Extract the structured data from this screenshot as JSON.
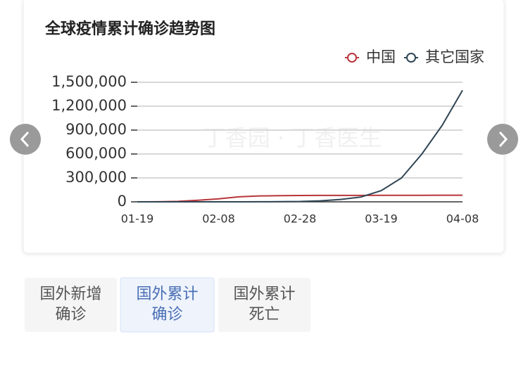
{
  "chart_data": {
    "type": "line",
    "title": "全球疫情累计确诊趋势图",
    "watermark": "丁香园 · 丁香医生",
    "categories": [
      "01-19",
      null,
      null,
      null,
      "02-08",
      null,
      null,
      null,
      "02-28",
      null,
      null,
      null,
      "03-19",
      null,
      null,
      null,
      "04-08"
    ],
    "series": [
      {
        "name": "中国",
        "color": "#b8353a",
        "values": [
          200,
          900,
          6000,
          20000,
          37000,
          63000,
          74000,
          77000,
          79000,
          80400,
          80700,
          81000,
          81300,
          81700,
          82000,
          82500,
          83000
        ]
      },
      {
        "name": "其它国家",
        "color": "#2f4554",
        "values": [
          0,
          10,
          100,
          200,
          300,
          500,
          900,
          2000,
          4000,
          12000,
          30000,
          60000,
          140000,
          300000,
          600000,
          960000,
          1400000
        ]
      }
    ],
    "ylim": [
      0,
      1500000
    ],
    "yticks": [
      0,
      {
        "value": 300000,
        "label": "300,000"
      },
      {
        "value": 600000,
        "label": "600,000"
      },
      {
        "value": 900000,
        "label": "900,000"
      },
      {
        "value": 1200000,
        "label": "1,200,000"
      },
      {
        "value": 1500000,
        "label": "1,500,000"
      }
    ],
    "grid": true,
    "legend": "top-right"
  },
  "tabs": [
    {
      "lines": [
        "国外新增",
        "确诊"
      ],
      "selected": false
    },
    {
      "lines": [
        "国外累计",
        "确诊"
      ],
      "selected": true
    },
    {
      "lines": [
        "国外累计",
        "死亡"
      ],
      "selected": false
    }
  ]
}
